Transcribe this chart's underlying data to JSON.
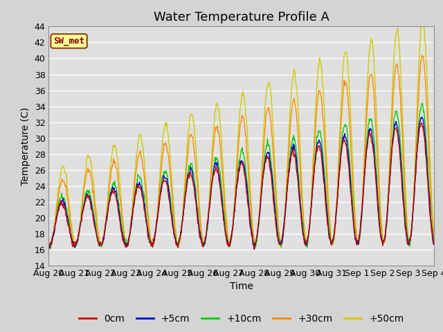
{
  "title": "Water Temperature Profile A",
  "xlabel": "Time",
  "ylabel": "Temperature (C)",
  "ylim": [
    14,
    44
  ],
  "yticks": [
    14,
    16,
    18,
    20,
    22,
    24,
    26,
    28,
    30,
    32,
    34,
    36,
    38,
    40,
    42,
    44
  ],
  "x_labels": [
    "Aug 20",
    "Aug 21",
    "Aug 22",
    "Aug 23",
    "Aug 24",
    "Aug 25",
    "Aug 26",
    "Aug 27",
    "Aug 28",
    "Aug 29",
    "Aug 30",
    "Aug 31",
    "Sep 1",
    "Sep 2",
    "Sep 3",
    "Sep 4"
  ],
  "series_colors": [
    "#cc0000",
    "#0000cc",
    "#00cc00",
    "#ff8800",
    "#cccc00"
  ],
  "series_labels": [
    "0cm",
    "+5cm",
    "+10cm",
    "+30cm",
    "+50cm"
  ],
  "fig_bg": "#d4d4d4",
  "plot_bg": "#e0e0e0",
  "legend_box_color": "#ffff99",
  "legend_box_edge": "#8B4513",
  "annotation_text": "SW_met",
  "annotation_color": "#8B0000",
  "title_fontsize": 13,
  "label_fontsize": 10,
  "tick_fontsize": 9
}
